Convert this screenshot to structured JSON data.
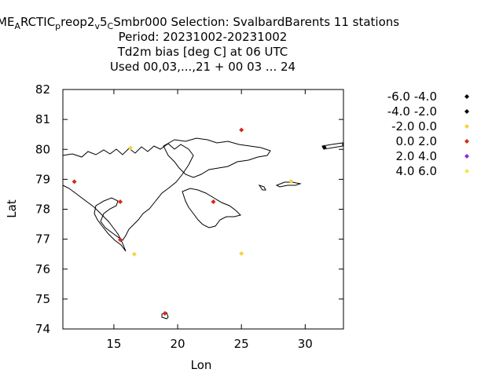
{
  "title": {
    "line1": {
      "a": "ME",
      "a_sub": "A",
      "b": "RCTIC",
      "b_sub": "p",
      "c": "reop2",
      "c_sub": "v",
      "d": "5",
      "d_sub": "C",
      "e": "Smbr000   Selection: SvalbardBarents     11 stations"
    },
    "line2": "Period: 20231002-20231002",
    "line3": "Td2m bias [deg C] at  06 UTC",
    "line4": "Used  00,03,...,21  + 00 03 ... 24"
  },
  "chart_data": {
    "type": "scatter",
    "xlabel": "Lon",
    "ylabel": "Lat",
    "xlim": [
      11,
      33
    ],
    "ylim": [
      74,
      82
    ],
    "x_ticks": [
      15,
      20,
      25,
      30
    ],
    "y_ticks": [
      74,
      75,
      76,
      77,
      78,
      79,
      80,
      81,
      82
    ],
    "grid": false,
    "legend_position": "right",
    "legend": [
      {
        "label": "-6.0 -4.0",
        "color": "#000000"
      },
      {
        "label": "-4.0 -2.0",
        "color": "#000000"
      },
      {
        "label": "-2.0 0.0",
        "color": "#f5d33f"
      },
      {
        "label": "0.0 2.0",
        "color": "#d42a1c"
      },
      {
        "label": "2.0 4.0",
        "color": "#8a2be2"
      },
      {
        "label": "4.0 6.0",
        "color": "#f5e642"
      }
    ],
    "points": [
      {
        "lon": 11.9,
        "lat": 78.92,
        "bin": "0.0 2.0"
      },
      {
        "lon": 15.5,
        "lat": 78.25,
        "bin": "0.0 2.0"
      },
      {
        "lon": 15.5,
        "lat": 76.98,
        "bin": "0.0 2.0"
      },
      {
        "lon": 16.3,
        "lat": 80.05,
        "bin": "-2.0 0.0"
      },
      {
        "lon": 16.6,
        "lat": 76.5,
        "bin": "-2.0 0.0"
      },
      {
        "lon": 19.0,
        "lat": 74.52,
        "bin": "0.0 2.0"
      },
      {
        "lon": 22.8,
        "lat": 78.25,
        "bin": "0.0 2.0"
      },
      {
        "lon": 25.0,
        "lat": 80.65,
        "bin": "0.0 2.0"
      },
      {
        "lon": 25.0,
        "lat": 76.52,
        "bin": "-2.0 0.0"
      },
      {
        "lon": 28.9,
        "lat": 78.93,
        "bin": "-2.0 0.0"
      },
      {
        "lon": 31.5,
        "lat": 80.07,
        "bin": "-4.0 -2.0"
      }
    ]
  }
}
